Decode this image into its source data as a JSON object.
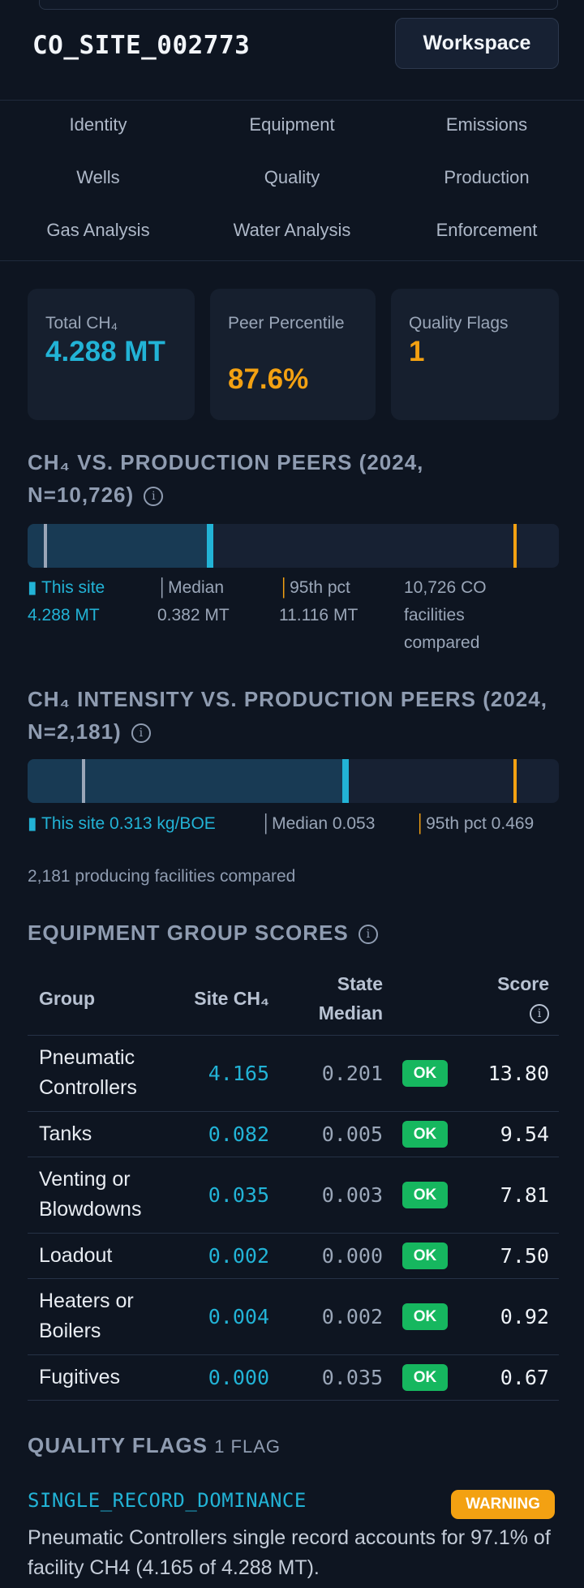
{
  "header": {
    "site_id": "CO_SITE_002773",
    "workspace_label": "Workspace"
  },
  "tabs": [
    "Identity",
    "Equipment",
    "Emissions",
    "Wells",
    "Quality",
    "Production",
    "Gas Analysis",
    "Water Analysis",
    "Enforcement"
  ],
  "cards": {
    "total": {
      "label": "Total CH₄",
      "value": "4.288 MT"
    },
    "peer": {
      "label": "Peer Percentile",
      "value": "87.6%"
    },
    "flags": {
      "label": "Quality Flags",
      "value": "1"
    }
  },
  "production_peers": {
    "title": "CH₄ VS. PRODUCTION PEERS (2024, N=10,726)",
    "site_label": "This site",
    "site_value": "4.288 MT",
    "median_label": "Median",
    "median_value": "0.382 MT",
    "p95_label": "95th pct",
    "p95_value": "11.116 MT",
    "compared_note": "10,726 CO facilities compared",
    "bar_site_fraction": 0.35,
    "bar_median_fraction": 0.03,
    "bar_p95_fraction": 0.915
  },
  "intensity_peers": {
    "title": "CH₄ INTENSITY VS. PRODUCTION PEERS (2024, N=2,181)",
    "site_text": "This site 0.313 kg/BOE",
    "median_text": "Median 0.053",
    "p95_text": "95th pct 0.469",
    "compared_note": "2,181 producing facilities compared",
    "bar_site_fraction": 0.605,
    "bar_median_fraction": 0.103,
    "bar_p95_fraction": 0.915
  },
  "equipment": {
    "title": "EQUIPMENT GROUP SCORES",
    "columns": {
      "group": "Group",
      "site": "Site CH₄",
      "state": "State Median",
      "score": "Score"
    },
    "rows": [
      {
        "group": "Pneumatic Controllers",
        "site": "4.165",
        "median": "0.201",
        "status": "OK",
        "score": "13.80"
      },
      {
        "group": "Tanks",
        "site": "0.082",
        "median": "0.005",
        "status": "OK",
        "score": "9.54"
      },
      {
        "group": "Venting or Blowdowns",
        "site": "0.035",
        "median": "0.003",
        "status": "OK",
        "score": "7.81"
      },
      {
        "group": "Loadout",
        "site": "0.002",
        "median": "0.000",
        "status": "OK",
        "score": "7.50"
      },
      {
        "group": "Heaters or Boilers",
        "site": "0.004",
        "median": "0.002",
        "status": "OK",
        "score": "0.92"
      },
      {
        "group": "Fugitives",
        "site": "0.000",
        "median": "0.035",
        "status": "OK",
        "score": "0.67"
      }
    ]
  },
  "quality_flags": {
    "title": "QUALITY FLAGS",
    "count_label": "1 FLAG",
    "flags": [
      {
        "code": "SINGLE_RECORD_DOMINANCE",
        "severity": "WARNING",
        "description": "Pneumatic Controllers single record accounts for 97.1% of facility CH4 (4.165 of 4.288 MT)."
      }
    ]
  },
  "colors": {
    "accent": "#22b3d6",
    "warning": "#f3a112",
    "ok": "#16b75f",
    "median": "#9aa6b8"
  }
}
